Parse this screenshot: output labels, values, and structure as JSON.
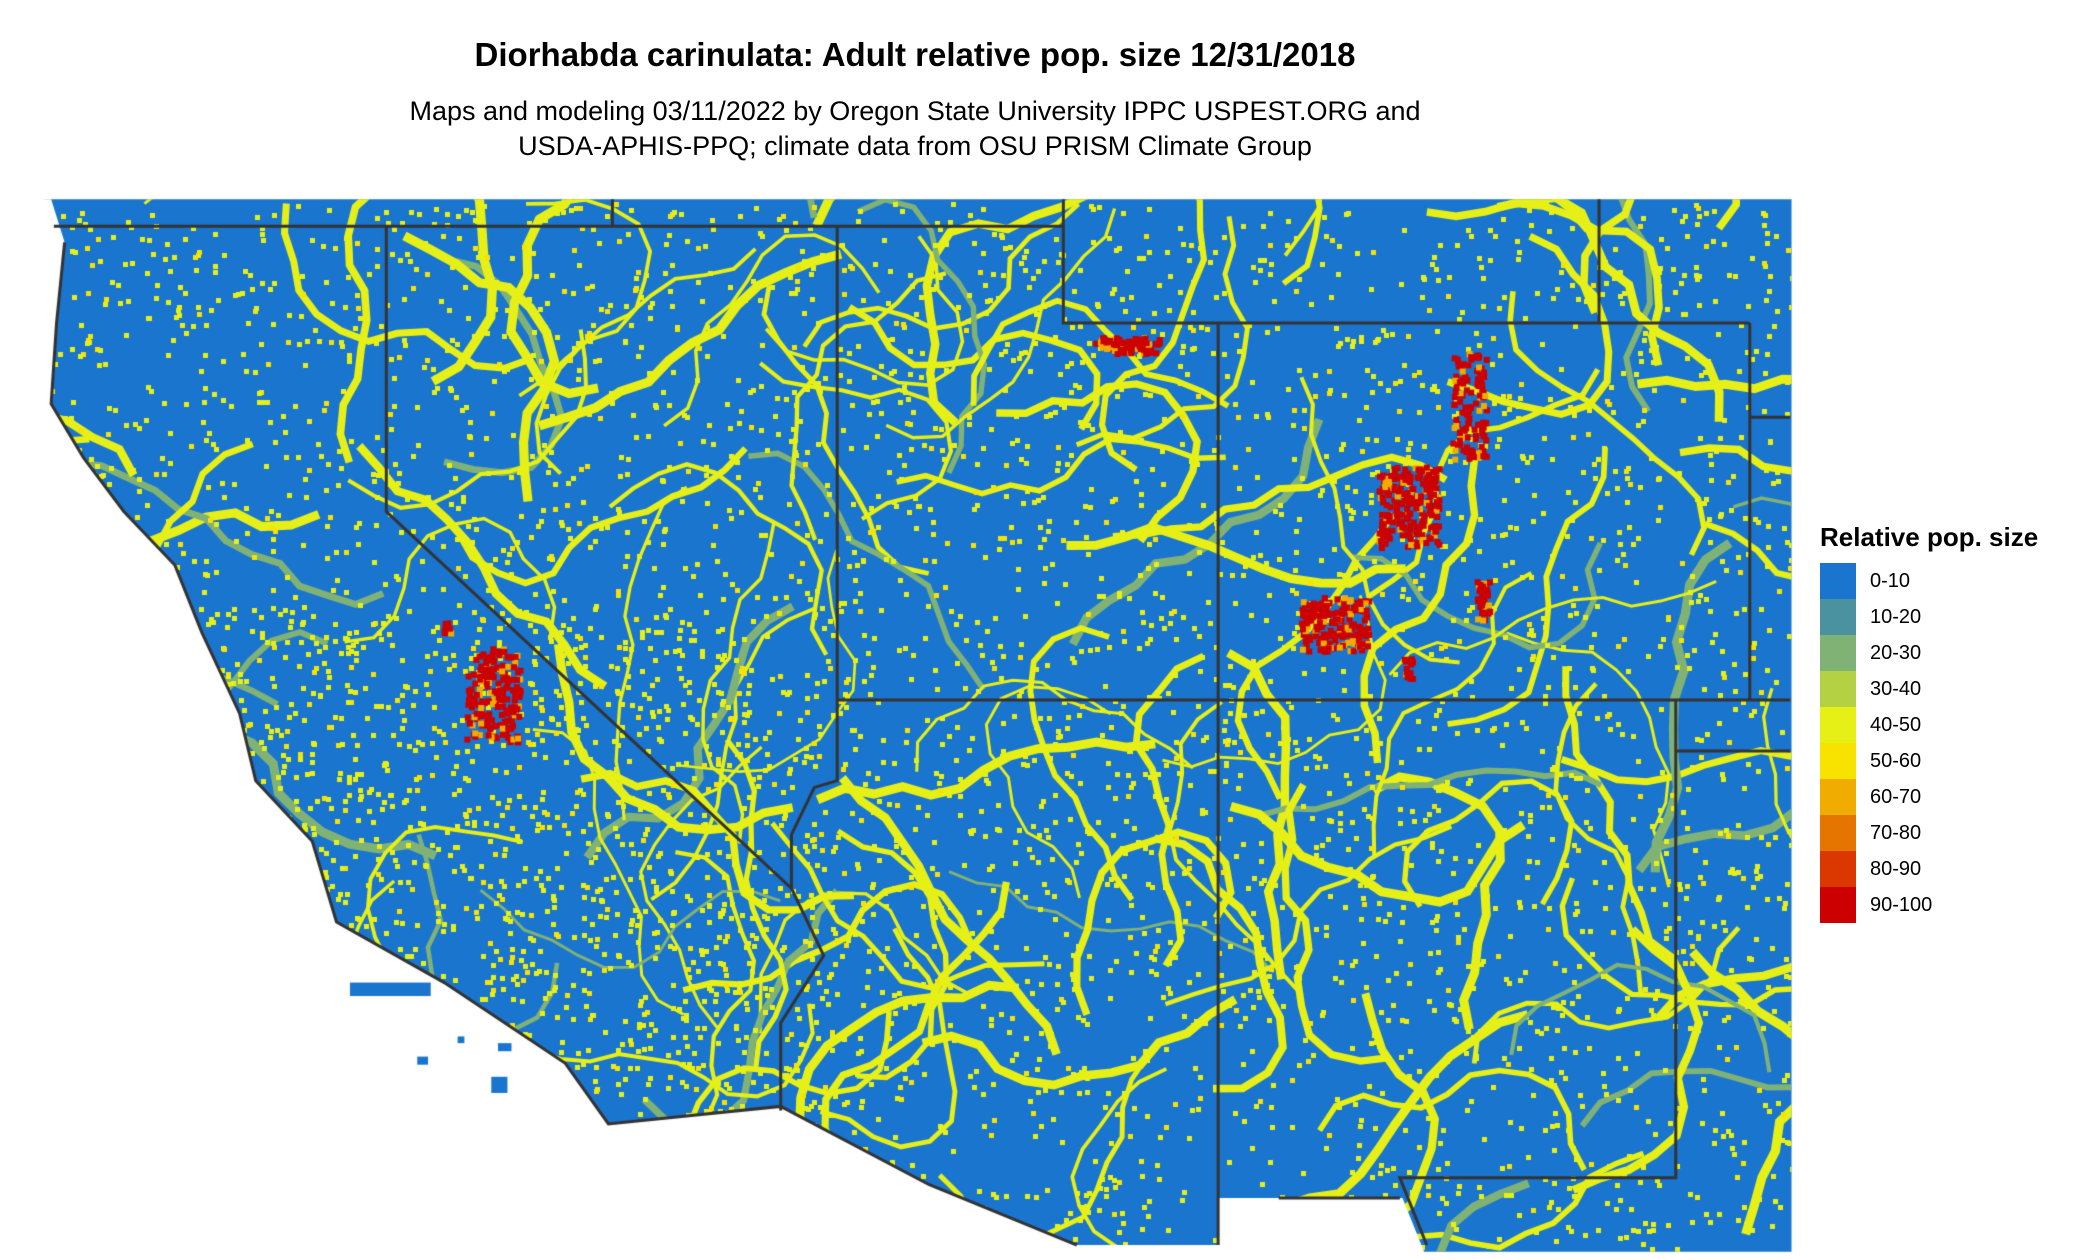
{
  "title": "Diorhabda carinulata: Adult relative pop. size 12/31/2018",
  "subtitle_lines": [
    "Maps and modeling 03/11/2022 by Oregon State University IPPC USPEST.ORG and",
    "USDA-APHIS-PPQ; climate data from OSU PRISM Climate Group"
  ],
  "legend": {
    "title": "Relative pop. size",
    "items": [
      {
        "label": "0-10",
        "color": "#1A75CF"
      },
      {
        "label": "10-20",
        "color": "#4A92A0"
      },
      {
        "label": "20-30",
        "color": "#80B276"
      },
      {
        "label": "30-40",
        "color": "#B3D142"
      },
      {
        "label": "40-50",
        "color": "#E6F016"
      },
      {
        "label": "50-60",
        "color": "#F7E200"
      },
      {
        "label": "60-70",
        "color": "#F0AC00"
      },
      {
        "label": "70-80",
        "color": "#E67500"
      },
      {
        "label": "80-90",
        "color": "#DB3700"
      },
      {
        "label": "90-100",
        "color": "#CC0000"
      }
    ]
  },
  "border_color": "#333333"
}
